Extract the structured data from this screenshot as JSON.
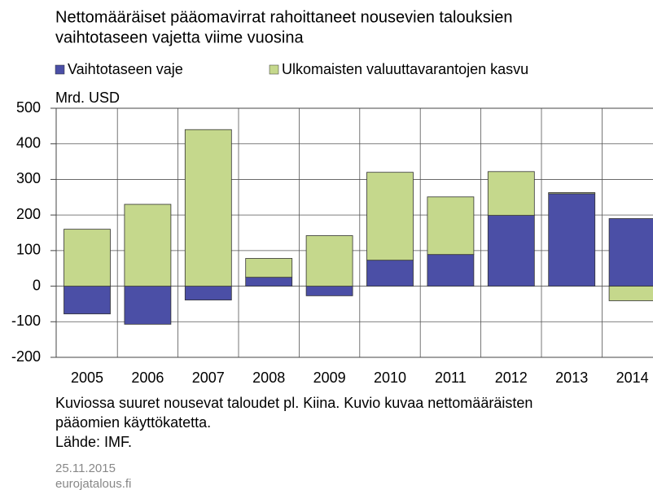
{
  "chart_data": {
    "type": "stacked_bar",
    "title": [
      "Nettomääräiset pääomavirrat rahoittaneet nousevien talouksien",
      "vaihtotaseen vajetta viime vuosina"
    ],
    "y_label": "Mrd. USD",
    "categories": [
      "2005",
      "2006",
      "2007",
      "2008",
      "2009",
      "2010",
      "2011",
      "2012",
      "2013",
      "2014"
    ],
    "series": [
      {
        "name": "Vaihtotaseen vaje",
        "color": "#4b4fa6",
        "values": [
          -78,
          -107,
          -39,
          25,
          -27,
          73,
          89,
          199,
          260,
          190
        ]
      },
      {
        "name": "Ulkomaisten valuuttavarantojen kasvu",
        "color": "#c5d88c",
        "values": [
          160,
          230,
          440,
          53,
          142,
          247,
          162,
          123,
          3,
          -41
        ]
      }
    ],
    "ylim": [
      -200,
      500
    ],
    "yticks": [
      -200,
      -100,
      0,
      100,
      200,
      300,
      400,
      500
    ],
    "grid": true,
    "notes": [
      "Kuviossa suuret nousevat taloudet pl. Kiina. Kuvio kuvaa nettomääräisten",
      "pääomien käyttökatetta.",
      "Lähde: IMF."
    ],
    "date": "25.11.2015",
    "source": "eurojatalous.fi"
  }
}
